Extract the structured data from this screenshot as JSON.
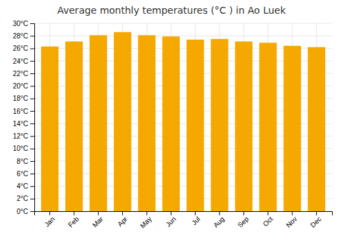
{
  "chart_data": {
    "type": "bar",
    "title": "Average monthly temperatures (°C ) in Ao Luek",
    "categories": [
      "Jan",
      "Feb",
      "Mar",
      "Apr",
      "May",
      "Jun",
      "Jul",
      "Aug",
      "Sep",
      "Oct",
      "Nov",
      "Dec"
    ],
    "values": [
      26.3,
      27.1,
      28.1,
      28.6,
      28.1,
      27.9,
      27.4,
      27.5,
      27.1,
      26.9,
      26.4,
      26.2
    ],
    "color": "#F5A800",
    "ylim": [
      0,
      30
    ],
    "yticks": [
      {
        "value": 0,
        "label": "0°C"
      },
      {
        "value": 2,
        "label": "2°C"
      },
      {
        "value": 4,
        "label": "4°C"
      },
      {
        "value": 6,
        "label": "6°C"
      },
      {
        "value": 8,
        "label": "8°C"
      },
      {
        "value": 10,
        "label": "10°C"
      },
      {
        "value": 12,
        "label": "12°C"
      },
      {
        "value": 14,
        "label": "14°C"
      },
      {
        "value": 16,
        "label": "16°C"
      },
      {
        "value": 18,
        "label": "18°C"
      },
      {
        "value": 20,
        "label": "20°C"
      },
      {
        "value": 22,
        "label": "22°C"
      },
      {
        "value": 24,
        "label": "24°C"
      },
      {
        "value": 26,
        "label": "26°C"
      },
      {
        "value": 28,
        "label": "28°C"
      },
      {
        "value": 30,
        "label": "30°C"
      }
    ],
    "grid": true
  }
}
